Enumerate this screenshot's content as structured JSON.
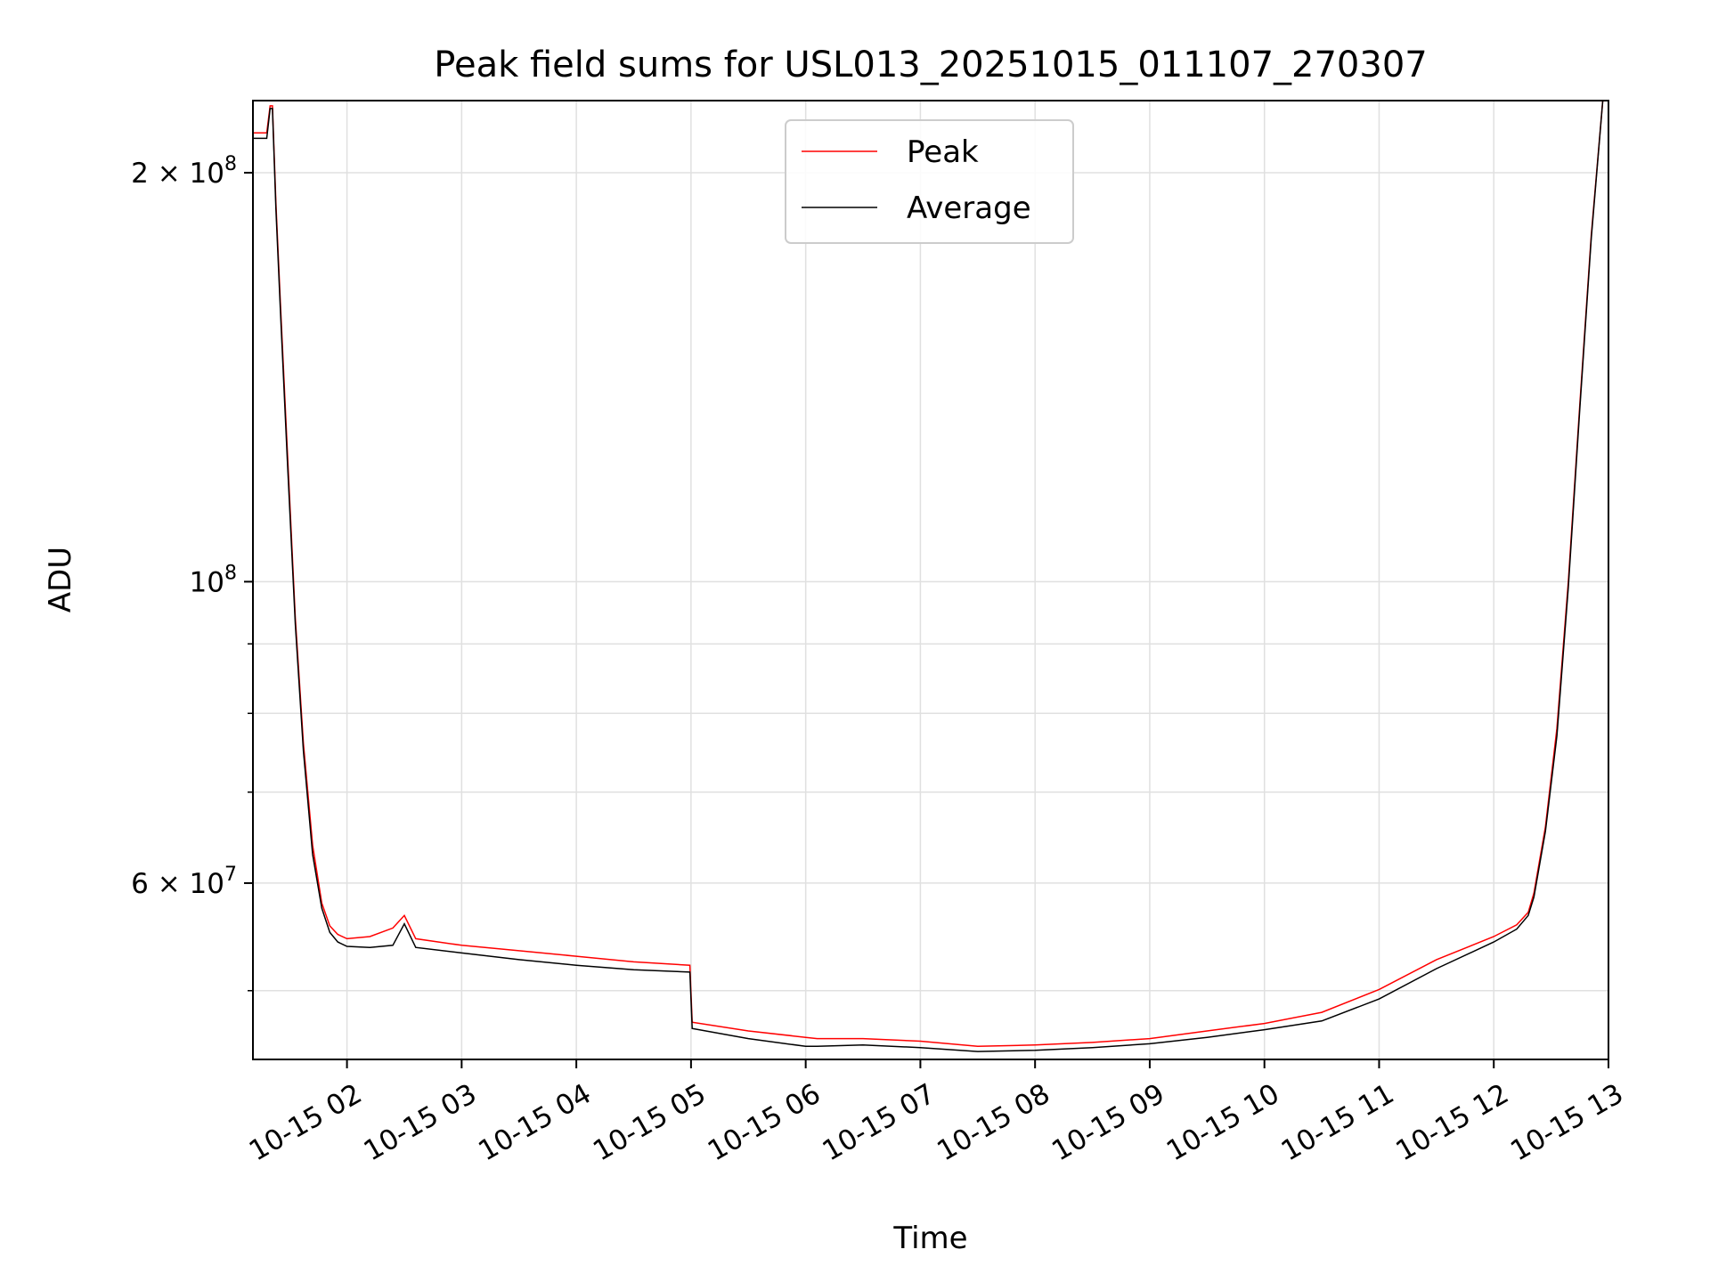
{
  "chart_data": {
    "type": "line",
    "title": "Peak field sums for USL013_20251015_011107_270307",
    "xlabel": "Time",
    "ylabel": "ADU",
    "yscale": "log",
    "grid": true,
    "legend_position": "top-center",
    "x_unit": "hours (10-15)",
    "xlim": [
      1.18,
      13.0
    ],
    "ylim": [
      44500000,
      226000000
    ],
    "x_ticks": [
      {
        "value": 2,
        "label": "10-15 02"
      },
      {
        "value": 3,
        "label": "10-15 03"
      },
      {
        "value": 4,
        "label": "10-15 04"
      },
      {
        "value": 5,
        "label": "10-15 05"
      },
      {
        "value": 6,
        "label": "10-15 06"
      },
      {
        "value": 7,
        "label": "10-15 07"
      },
      {
        "value": 8,
        "label": "10-15 08"
      },
      {
        "value": 9,
        "label": "10-15 09"
      },
      {
        "value": 10,
        "label": "10-15 10"
      },
      {
        "value": 11,
        "label": "10-15 11"
      },
      {
        "value": 12,
        "label": "10-15 12"
      },
      {
        "value": 13,
        "label": "10-15 13"
      }
    ],
    "y_major_ticks": [
      {
        "value": 200000000,
        "mantissa": "2",
        "sep": " × ",
        "base": "10",
        "exp": "8"
      },
      {
        "value": 100000000,
        "mantissa": "",
        "sep": "",
        "base": "10",
        "exp": "8"
      },
      {
        "value": 60000000,
        "mantissa": "6",
        "sep": " × ",
        "base": "10",
        "exp": "7"
      }
    ],
    "y_minor_ticks": [
      50000000,
      70000000,
      80000000,
      90000000
    ],
    "series": [
      {
        "name": "Peak",
        "color": "#ff0000",
        "x": [
          1.18,
          1.3,
          1.33,
          1.35,
          1.38,
          1.42,
          1.48,
          1.55,
          1.62,
          1.7,
          1.78,
          1.85,
          1.92,
          2.0,
          2.2,
          2.4,
          2.5,
          2.6,
          3.0,
          3.5,
          4.0,
          4.5,
          4.99,
          5.01,
          5.5,
          6.0,
          6.1,
          6.5,
          7.0,
          7.5,
          8.0,
          8.5,
          9.0,
          9.5,
          10.0,
          10.5,
          11.0,
          11.5,
          12.0,
          12.2,
          12.3,
          12.35,
          12.45,
          12.55,
          12.65,
          12.75,
          12.85,
          12.95
        ],
        "y": [
          214000000,
          214000000,
          224000000,
          224000000,
          190000000,
          160000000,
          125000000,
          94000000,
          76000000,
          64000000,
          58000000,
          55800000,
          55000000,
          54600000,
          54800000,
          55600000,
          56800000,
          54600000,
          54000000,
          53500000,
          53000000,
          52500000,
          52200000,
          47400000,
          46700000,
          46200000,
          46100000,
          46100000,
          45900000,
          45500000,
          45600000,
          45800000,
          46100000,
          46700000,
          47300000,
          48200000,
          50100000,
          52700000,
          54800000,
          55900000,
          57100000,
          59000000,
          66000000,
          78000000,
          100000000,
          135000000,
          180000000,
          226000000
        ]
      },
      {
        "name": "Average",
        "color": "#000000",
        "x": [
          1.18,
          1.3,
          1.33,
          1.35,
          1.38,
          1.42,
          1.48,
          1.55,
          1.62,
          1.7,
          1.78,
          1.85,
          1.92,
          2.0,
          2.2,
          2.4,
          2.5,
          2.6,
          3.0,
          3.5,
          4.0,
          4.5,
          4.99,
          5.01,
          5.5,
          6.0,
          6.1,
          6.5,
          7.0,
          7.5,
          8.0,
          8.5,
          9.0,
          9.5,
          10.0,
          10.5,
          11.0,
          11.5,
          12.0,
          12.2,
          12.3,
          12.35,
          12.45,
          12.55,
          12.65,
          12.75,
          12.85,
          12.95
        ],
        "y": [
          212000000,
          212000000,
          223000000,
          223000000,
          188000000,
          158000000,
          123000000,
          93000000,
          75000000,
          63000000,
          57500000,
          55200000,
          54300000,
          53900000,
          53800000,
          54000000,
          56000000,
          53800000,
          53300000,
          52700000,
          52200000,
          51800000,
          51600000,
          46900000,
          46100000,
          45500000,
          45500000,
          45600000,
          45400000,
          45100000,
          45200000,
          45400000,
          45700000,
          46200000,
          46800000,
          47500000,
          49300000,
          51900000,
          54300000,
          55500000,
          56800000,
          58600000,
          65500000,
          77000000,
          99000000,
          134000000,
          179000000,
          226000000
        ]
      }
    ]
  }
}
